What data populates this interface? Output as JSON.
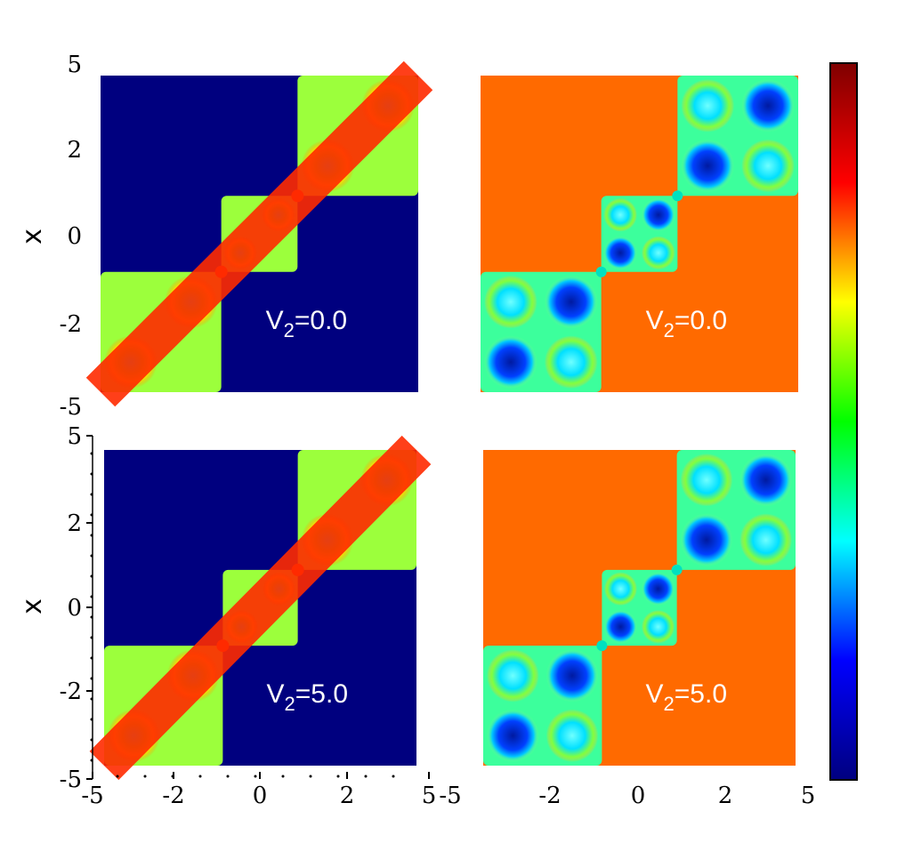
{
  "chart_data": {
    "type": "heatmap",
    "ylabel": "x",
    "xlim": [
      -5,
      5
    ],
    "ylim": [
      -5,
      5
    ],
    "colormap": "jet",
    "colormap_stops": [
      "#00007f",
      "#0000ff",
      "#00ffff",
      "#00ff00",
      "#ffff00",
      "#ff0000",
      "#7f0000"
    ],
    "colorbar": true,
    "panel_colors": {
      "background_low": "#00007f",
      "background_high": "#ff6a00",
      "diagonal": "#ff2a00"
    },
    "panels": [
      {
        "label_main": "V",
        "label_sub": "2",
        "label_tail": "=0.0",
        "kind": "density",
        "row": 0,
        "col": 0
      },
      {
        "label_main": "V",
        "label_sub": "2",
        "label_tail": "=0.0",
        "kind": "phase",
        "row": 0,
        "col": 1
      },
      {
        "label_main": "V",
        "label_sub": "2",
        "label_tail": "=5.0",
        "kind": "density",
        "row": 1,
        "col": 0
      },
      {
        "label_main": "V",
        "label_sub": "2",
        "label_tail": "=5.0",
        "kind": "phase",
        "row": 1,
        "col": 1
      }
    ],
    "y_ticks_top": [
      "5",
      "2",
      "0",
      "-2",
      "-5"
    ],
    "y_ticks_bottom": [
      "5",
      "2",
      "0",
      "-2",
      "-5"
    ],
    "x_ticks_left": [
      "-5",
      "-2",
      "0",
      "2",
      "5"
    ],
    "x_ticks_right": [
      "-5",
      "-2",
      "0",
      "2",
      "5"
    ]
  }
}
